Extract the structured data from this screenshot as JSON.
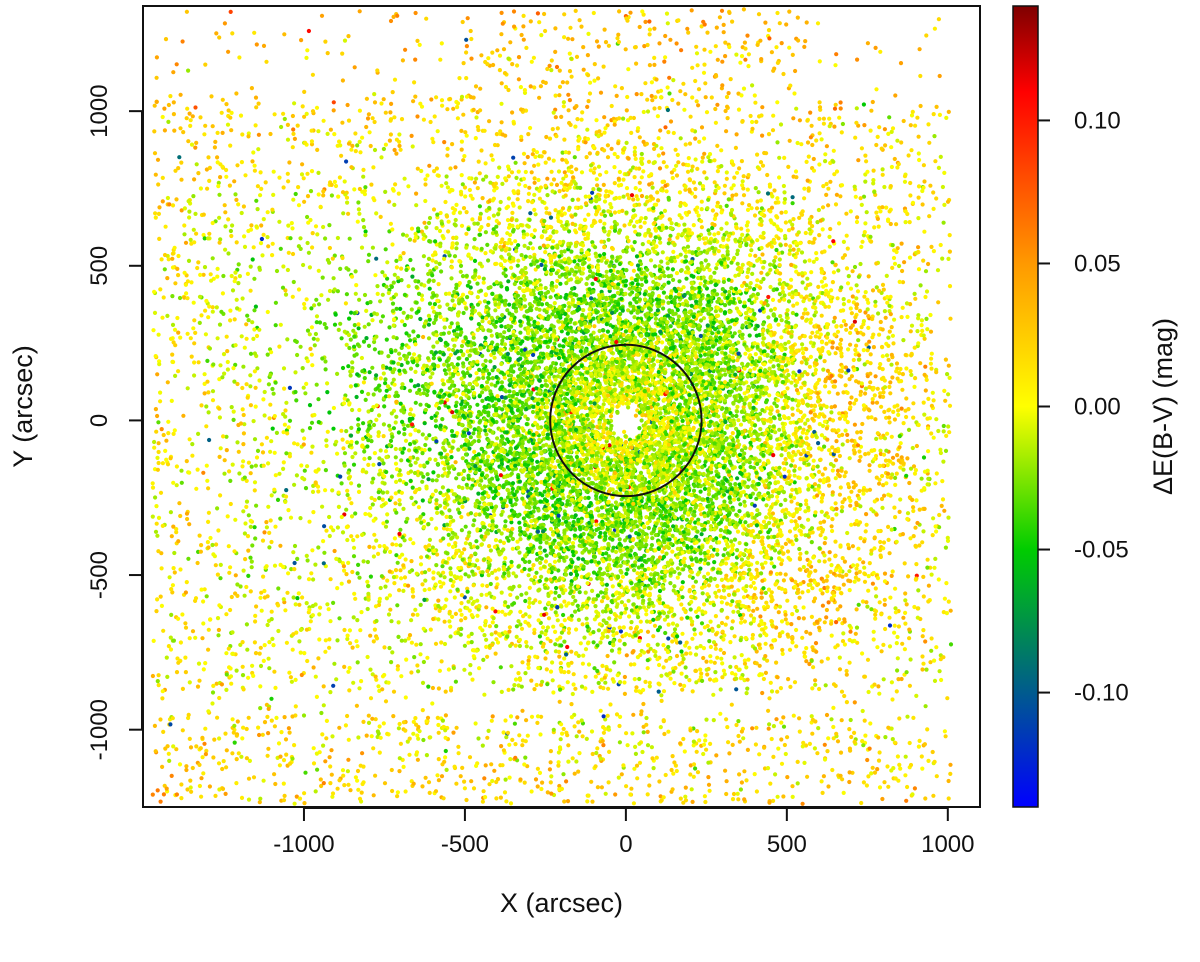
{
  "chart_data": {
    "type": "scatter",
    "xlabel": "X (arcsec)",
    "ylabel": "Y (arcsec)",
    "xlim": [
      -1500,
      1100
    ],
    "ylim": [
      -1250,
      1340
    ],
    "xticks": [
      -1000,
      -500,
      0,
      500,
      1000
    ],
    "xtick_labels": [
      "-1000",
      "-500",
      "0",
      "500",
      "1000"
    ],
    "yticks": [
      -1000,
      -500,
      0,
      500,
      1000
    ],
    "ytick_labels": [
      "-1000",
      "-500",
      "0",
      "500",
      "1000"
    ],
    "grid": false,
    "colorbar": {
      "label": "ΔE(B-V) (mag)",
      "range": [
        -0.14,
        0.14
      ],
      "ticks": [
        -0.1,
        -0.05,
        0.0,
        0.05,
        0.1
      ],
      "tick_labels": [
        "-0.10",
        "-0.05",
        "0.00",
        "0.05",
        "0.10"
      ],
      "colors": [
        "#0000ff",
        "#00cc00",
        "#ffff00",
        "#ff9900",
        "#ff0000",
        "#7f0000"
      ]
    },
    "circle": {
      "center": [
        0,
        0
      ],
      "radius": 240,
      "color": "#000000"
    },
    "central_hole_radius": 30,
    "point_density": {
      "description_values": "Stars distributed approximately within X in [-1470, 1010], Y in [-1240, 1330]; denser toward the center; color shows differential reddening.",
      "region_x": [
        -1470,
        1010
      ],
      "region_y": [
        -1240,
        1330
      ]
    }
  }
}
